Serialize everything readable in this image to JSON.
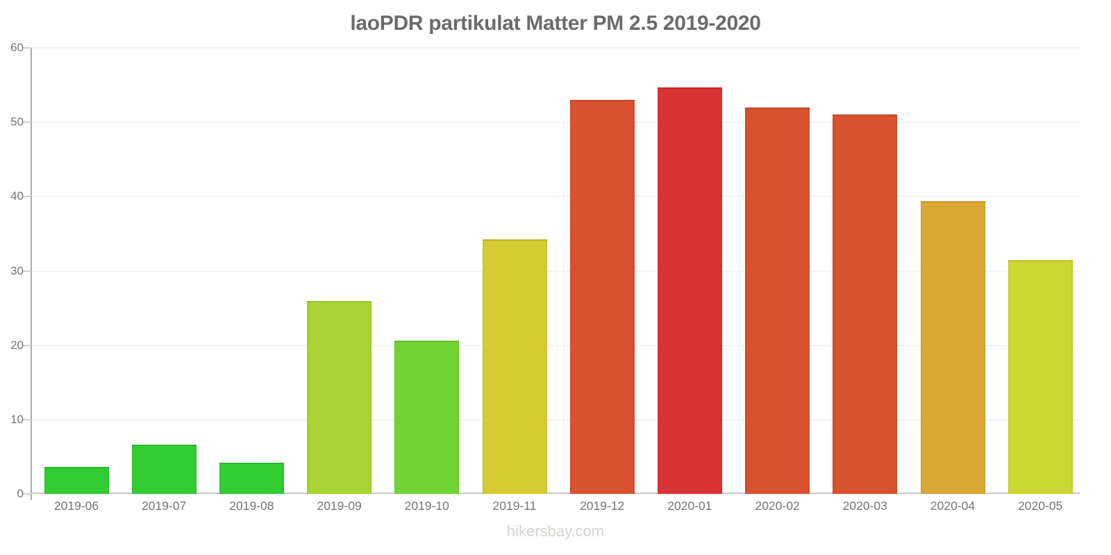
{
  "page": {
    "title": "laoPDR partikulat Matter PM 2.5 2019-2020",
    "footer": "hikersbay.com"
  },
  "chart_data": {
    "type": "bar",
    "title": "laoPDR partikulat Matter PM 2.5 2019-2020",
    "categories": [
      "2019-06",
      "2019-07",
      "2019-08",
      "2019-09",
      "2019-10",
      "2019-11",
      "2019-12",
      "2020-01",
      "2020-02",
      "2020-03",
      "2020-04",
      "2020-05"
    ],
    "values": [
      3.6,
      6.6,
      4.2,
      25.9,
      20.6,
      34.2,
      53.0,
      54.7,
      52.0,
      51.0,
      39.4,
      31.4
    ],
    "bar_colors": [
      "#33cc33",
      "#33cc33",
      "#33cc33",
      "#a8d533",
      "#70d435",
      "#d6cc32",
      "#d9522f",
      "#d93434",
      "#d9522f",
      "#d9522f",
      "#dba834",
      "#ccd832"
    ],
    "xlabel": "",
    "ylabel": "",
    "ylim": [
      0,
      60
    ],
    "yticks": [
      0,
      10,
      20,
      30,
      40,
      50,
      60
    ],
    "grid": true,
    "legend_position": "none",
    "axis_color": "#ababab",
    "grid_color": "#f4f4f4",
    "tick_label_color": "#757575",
    "title_color": "#6b6b6b",
    "watermark_color": "#d3d3d0"
  }
}
